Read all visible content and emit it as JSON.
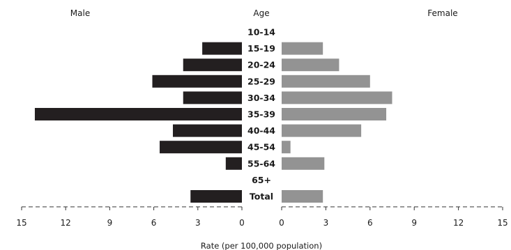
{
  "chart_data": {
    "type": "bar",
    "layout": "population-pyramid",
    "headers": {
      "left": "Male",
      "center": "Age",
      "right": "Female"
    },
    "categories": [
      "10-14",
      "15-19",
      "20-24",
      "25-29",
      "30-34",
      "35-39",
      "40-44",
      "45-54",
      "55-64",
      "65+",
      "Total"
    ],
    "series": [
      {
        "name": "Male",
        "color": "#231f20",
        "values": [
          0,
          2.7,
          4.0,
          6.1,
          4.0,
          14.1,
          4.7,
          5.6,
          1.1,
          0,
          3.5
        ]
      },
      {
        "name": "Female",
        "color": "#939393",
        "values": [
          0,
          2.8,
          3.9,
          6.0,
          7.5,
          7.1,
          5.4,
          0.6,
          2.9,
          0,
          2.8
        ]
      }
    ],
    "xlim": [
      0,
      15
    ],
    "ticks": [
      15,
      12,
      9,
      6,
      3,
      0
    ],
    "tick_labels_left": [
      "15",
      "12",
      "9",
      "6",
      "3",
      "0"
    ],
    "tick_labels_right": [
      "0",
      "3",
      "6",
      "9",
      "12",
      "15"
    ],
    "xlabel": "Rate (per 100,000 population)",
    "grid": false,
    "legend": "none"
  }
}
